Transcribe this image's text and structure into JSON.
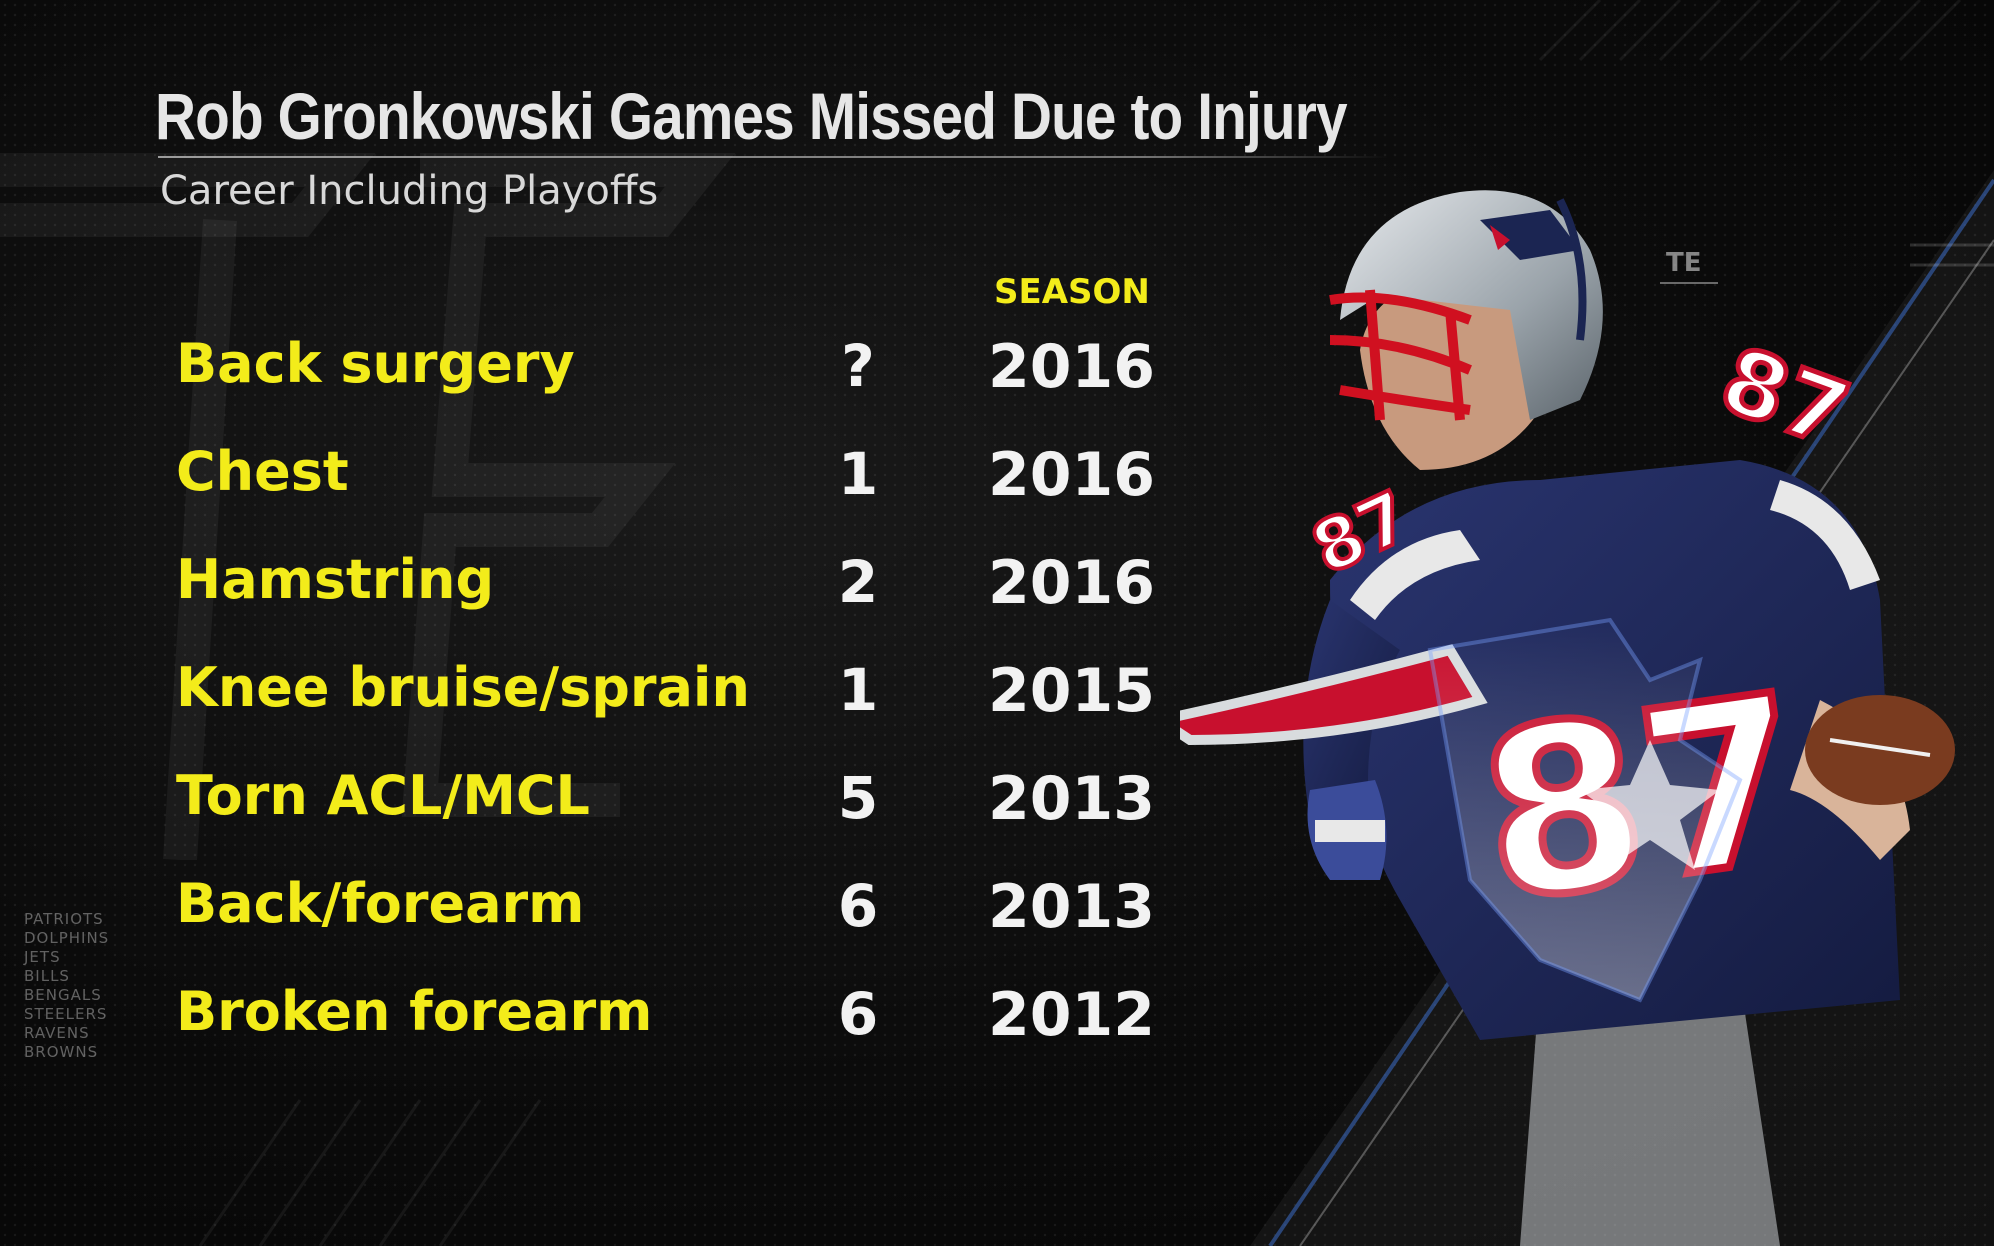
{
  "graphic": {
    "title": "Rob Gronkowski Games Missed Due to Injury",
    "subtitle": "Career Including Playoffs",
    "season_header": "SEASON",
    "position_tag": "TE"
  },
  "injuries": [
    {
      "injury": "Back surgery",
      "games": "?",
      "season": "2016"
    },
    {
      "injury": "Chest",
      "games": "1",
      "season": "2016"
    },
    {
      "injury": "Hamstring",
      "games": "2",
      "season": "2016"
    },
    {
      "injury": "Knee bruise/sprain",
      "games": "1",
      "season": "2015"
    },
    {
      "injury": "Torn ACL/MCL",
      "games": "5",
      "season": "2013"
    },
    {
      "injury": "Back/forearm",
      "games": "6",
      "season": "2013"
    },
    {
      "injury": "Broken forearm",
      "games": "6",
      "season": "2012"
    }
  ],
  "division_teams": [
    "PATRIOTS",
    "DOLPHINS",
    "JETS",
    "BILLS",
    "BENGALS",
    "STEELERS",
    "RAVENS",
    "BROWNS"
  ],
  "player": {
    "jersey_number": "87"
  },
  "colors": {
    "highlight_yellow": "#f3ec1a",
    "patriots_navy": "#1b2552",
    "patriots_red": "#c8102e",
    "patriots_silver": "#b0b7bc"
  }
}
